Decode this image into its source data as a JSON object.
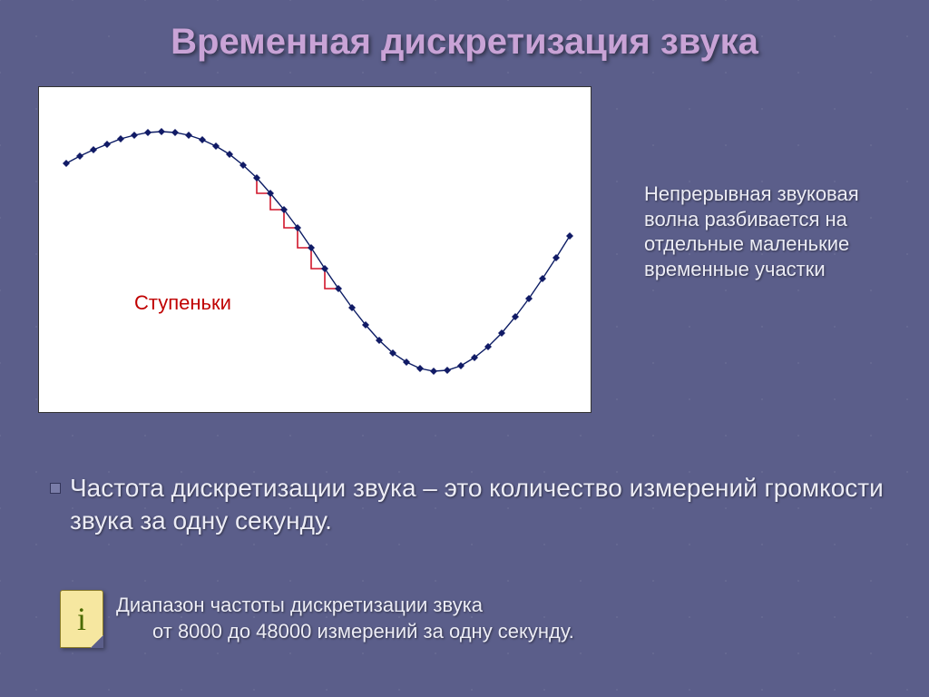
{
  "title": "Временная дискретизация звука",
  "chart": {
    "type": "line",
    "background_color": "#ffffff",
    "line_color": "#0c1c64",
    "line_width": 1.4,
    "marker_shape": "diamond",
    "marker_size": 8,
    "marker_fill": "#111b66",
    "step_color": "#d1152a",
    "step_line_width": 1.6,
    "label": "Ступеньки",
    "label_color": "#c00000",
    "label_fontsize": 22,
    "xlim": [
      0,
      610
    ],
    "ylim": [
      0,
      360
    ],
    "points": [
      [
        30,
        84
      ],
      [
        45,
        76
      ],
      [
        60,
        69
      ],
      [
        75,
        63
      ],
      [
        90,
        57
      ],
      [
        105,
        53
      ],
      [
        120,
        50
      ],
      [
        135,
        49
      ],
      [
        150,
        50
      ],
      [
        165,
        53
      ],
      [
        180,
        58
      ],
      [
        195,
        65
      ],
      [
        210,
        74
      ],
      [
        225,
        86
      ],
      [
        240,
        100
      ],
      [
        255,
        117
      ],
      [
        270,
        135
      ],
      [
        285,
        155
      ],
      [
        300,
        177
      ],
      [
        315,
        200
      ],
      [
        330,
        222
      ],
      [
        345,
        243
      ],
      [
        360,
        262
      ],
      [
        375,
        279
      ],
      [
        390,
        293
      ],
      [
        405,
        303
      ],
      [
        420,
        310
      ],
      [
        435,
        313
      ],
      [
        450,
        312
      ],
      [
        465,
        307
      ],
      [
        480,
        298
      ],
      [
        495,
        286
      ],
      [
        510,
        271
      ],
      [
        525,
        253
      ],
      [
        540,
        233
      ],
      [
        555,
        211
      ],
      [
        570,
        188
      ],
      [
        585,
        164
      ]
    ],
    "step_points": [
      [
        240,
        100
      ],
      [
        240,
        117
      ],
      [
        255,
        117
      ],
      [
        255,
        135
      ],
      [
        270,
        135
      ],
      [
        270,
        155
      ],
      [
        285,
        155
      ],
      [
        285,
        177
      ],
      [
        300,
        177
      ],
      [
        300,
        200
      ],
      [
        315,
        200
      ],
      [
        315,
        222
      ],
      [
        330,
        222
      ]
    ]
  },
  "side_text": "Непрерывная звуковая волна разбивается на отдельные маленькие временные участки",
  "bullet_text": "Частота дискретизации звука – это количество измерений громкости звука за одну секунду.",
  "note": {
    "line1": "Диапазон частоты дискретизации звука",
    "line2": "от 8000 до 48000 измерений за одну секунду."
  },
  "colors": {
    "background": "#5b5e8a",
    "title_color": "#c9a3d6",
    "body_text": "#ececf5"
  },
  "typography": {
    "title_fontsize": 40,
    "side_fontsize": 22,
    "bullet_fontsize": 28,
    "note_fontsize": 22
  }
}
